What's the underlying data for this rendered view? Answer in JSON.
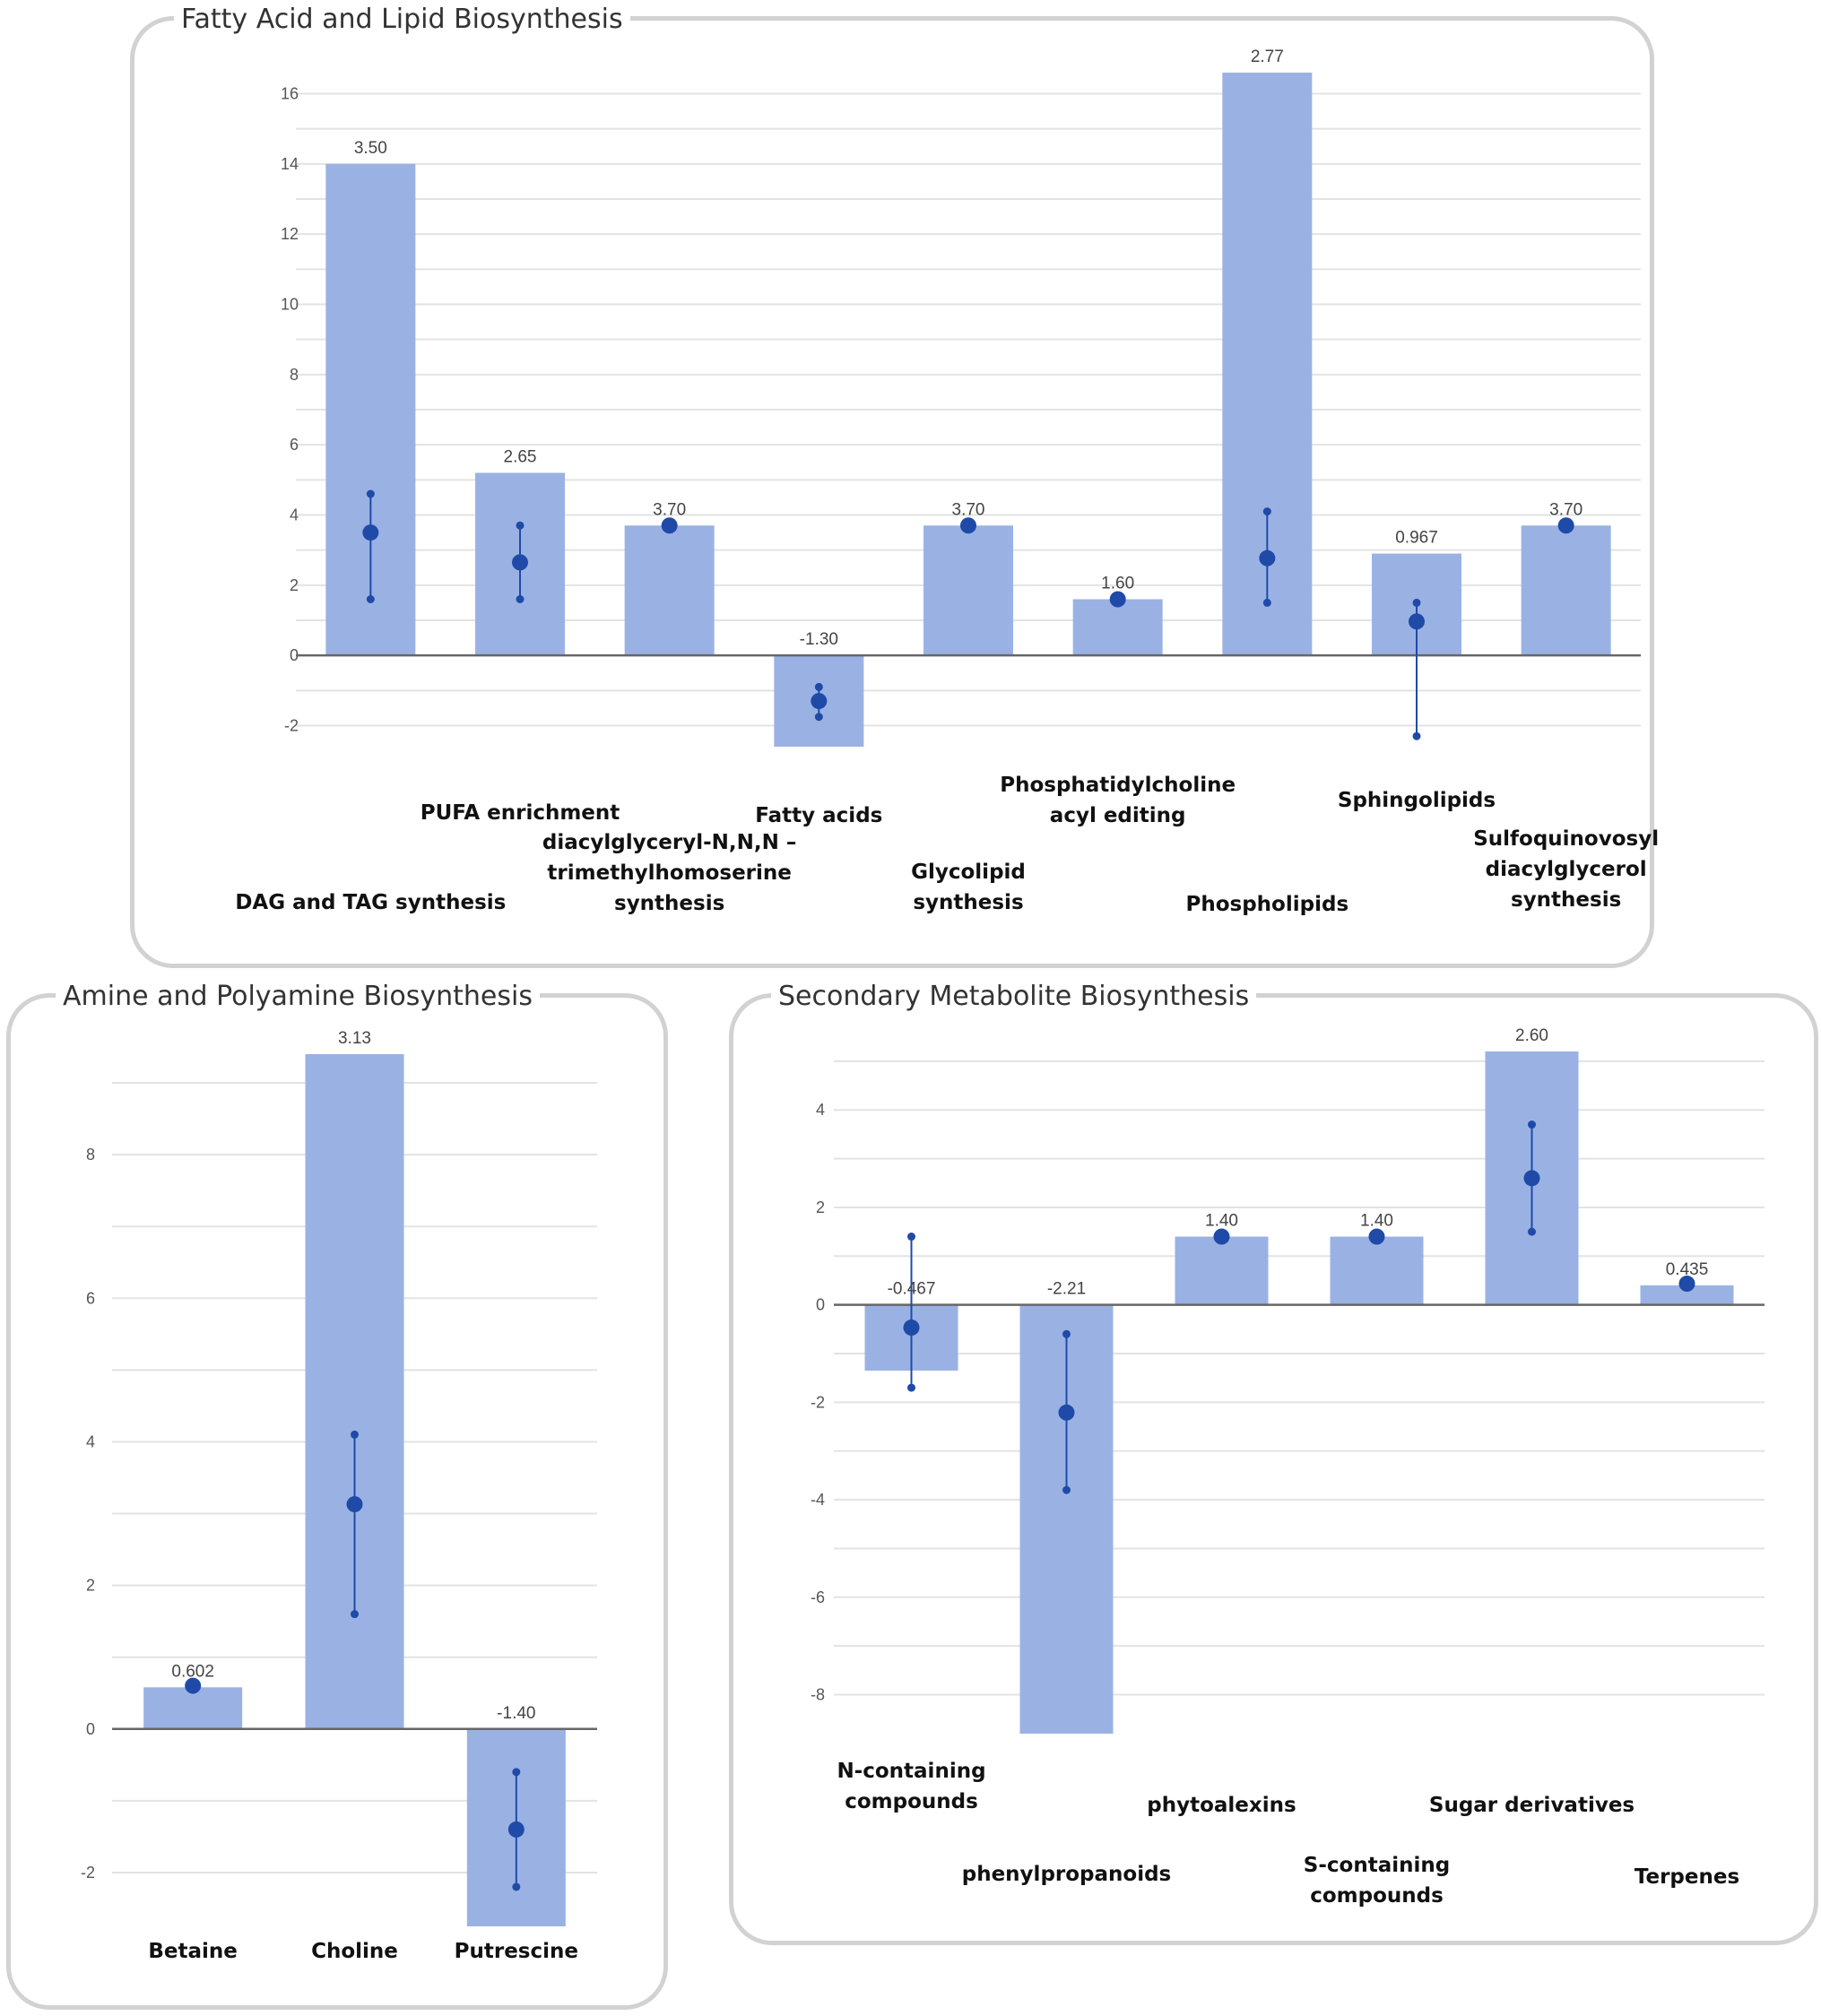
{
  "colors": {
    "bar": "#9ab2e3",
    "dot": "#1f4aa8",
    "grid": "#e3e3e3",
    "axis": "#666666",
    "border": "#d2d2d2"
  },
  "chart_data": [
    {
      "id": "fatty",
      "type": "bar",
      "title": "Fatty Acid and Lipid Biosynthesis",
      "categories": [
        "DAG and TAG synthesis",
        "PUFA enrichment",
        "diacylglyceryl-N,N,N – trimethylhomoserine synthesis",
        "Fatty acids",
        "Glycolipid synthesis",
        "Phosphatidylcholine acyl editing",
        "Phospholipids",
        "Sphingolipids",
        "Sulfoquinovosyl diacylglycerol synthesis"
      ],
      "category_lines": [
        [
          "DAG and TAG synthesis"
        ],
        [
          "PUFA enrichment"
        ],
        [
          "diacylglyceryl-N,N,N –",
          "trimethylhomoserine",
          "synthesis"
        ],
        [
          "Fatty acids"
        ],
        [
          "Glycolipid",
          "synthesis"
        ],
        [
          "Phosphatidylcholine",
          "acyl editing"
        ],
        [
          "Phospholipids"
        ],
        [
          "Sphingolipids"
        ],
        [
          "Sulfoquinovosyl",
          "diacylglycerol",
          "synthesis"
        ]
      ],
      "values": [
        14,
        5.2,
        3.7,
        -2.6,
        3.7,
        1.6,
        16.6,
        2.9,
        3.7
      ],
      "value_labels": [
        "3.50",
        "2.65",
        "3.70",
        "-1.30",
        "3.70",
        "1.60",
        "2.77",
        "0.967",
        "3.70"
      ],
      "points": [
        3.5,
        2.65,
        3.7,
        -1.3,
        3.7,
        1.6,
        2.77,
        0.967,
        3.7
      ],
      "error_low": [
        1.6,
        1.6,
        3.7,
        -1.75,
        3.7,
        1.6,
        1.5,
        -2.3,
        3.7
      ],
      "error_high": [
        4.6,
        3.7,
        3.7,
        -0.9,
        3.7,
        1.6,
        4.1,
        1.5,
        3.7
      ],
      "ylim": [
        -2.6,
        16.6
      ],
      "yticks": [
        -2,
        0,
        2,
        4,
        6,
        8,
        10,
        12,
        14,
        16
      ],
      "gridlines": true
    },
    {
      "id": "amine",
      "type": "bar",
      "title": "Amine and Polyamine Biosynthesis",
      "categories": [
        "Betaine",
        "Choline",
        "Putrescine"
      ],
      "category_lines": [
        [
          "Betaine"
        ],
        [
          "Choline"
        ],
        [
          "Putrescine"
        ]
      ],
      "values": [
        0.58,
        9.4,
        -2.75
      ],
      "value_labels": [
        "0.602",
        "3.13",
        "-1.40"
      ],
      "points": [
        0.602,
        3.13,
        -1.4
      ],
      "error_low": [
        0.602,
        1.6,
        -2.2
      ],
      "error_high": [
        0.602,
        4.1,
        -0.6
      ],
      "ylim": [
        -2.75,
        9.4
      ],
      "yticks": [
        -2,
        0,
        2,
        4,
        6,
        8
      ],
      "gridlines": true
    },
    {
      "id": "secondary",
      "type": "bar",
      "title": "Secondary Metabolite Biosynthesis",
      "categories": [
        "N-containing compounds",
        "phenylpropanoids",
        "phytoalexins",
        "S-containing compounds",
        "Sugar derivatives",
        "Terpenes"
      ],
      "category_lines": [
        [
          "N-containing",
          "compounds"
        ],
        [
          "phenylpropanoids"
        ],
        [
          "phytoalexins"
        ],
        [
          "S-containing",
          "compounds"
        ],
        [
          "Sugar derivatives"
        ],
        [
          "Terpenes"
        ]
      ],
      "values": [
        -1.35,
        -8.8,
        1.4,
        1.4,
        5.2,
        0.4
      ],
      "value_labels": [
        "-0.467",
        "-2.21",
        "1.40",
        "1.40",
        "2.60",
        "0.435"
      ],
      "points": [
        -0.467,
        -2.21,
        1.4,
        1.4,
        2.6,
        0.435
      ],
      "error_low": [
        -1.7,
        -3.8,
        1.4,
        1.4,
        1.5,
        0.435
      ],
      "error_high": [
        1.4,
        -0.6,
        1.4,
        1.4,
        3.7,
        0.435
      ],
      "ylim": [
        -8.8,
        5.2
      ],
      "yticks": [
        -8,
        -6,
        -4,
        -2,
        0,
        2,
        4
      ],
      "gridlines": true
    }
  ]
}
